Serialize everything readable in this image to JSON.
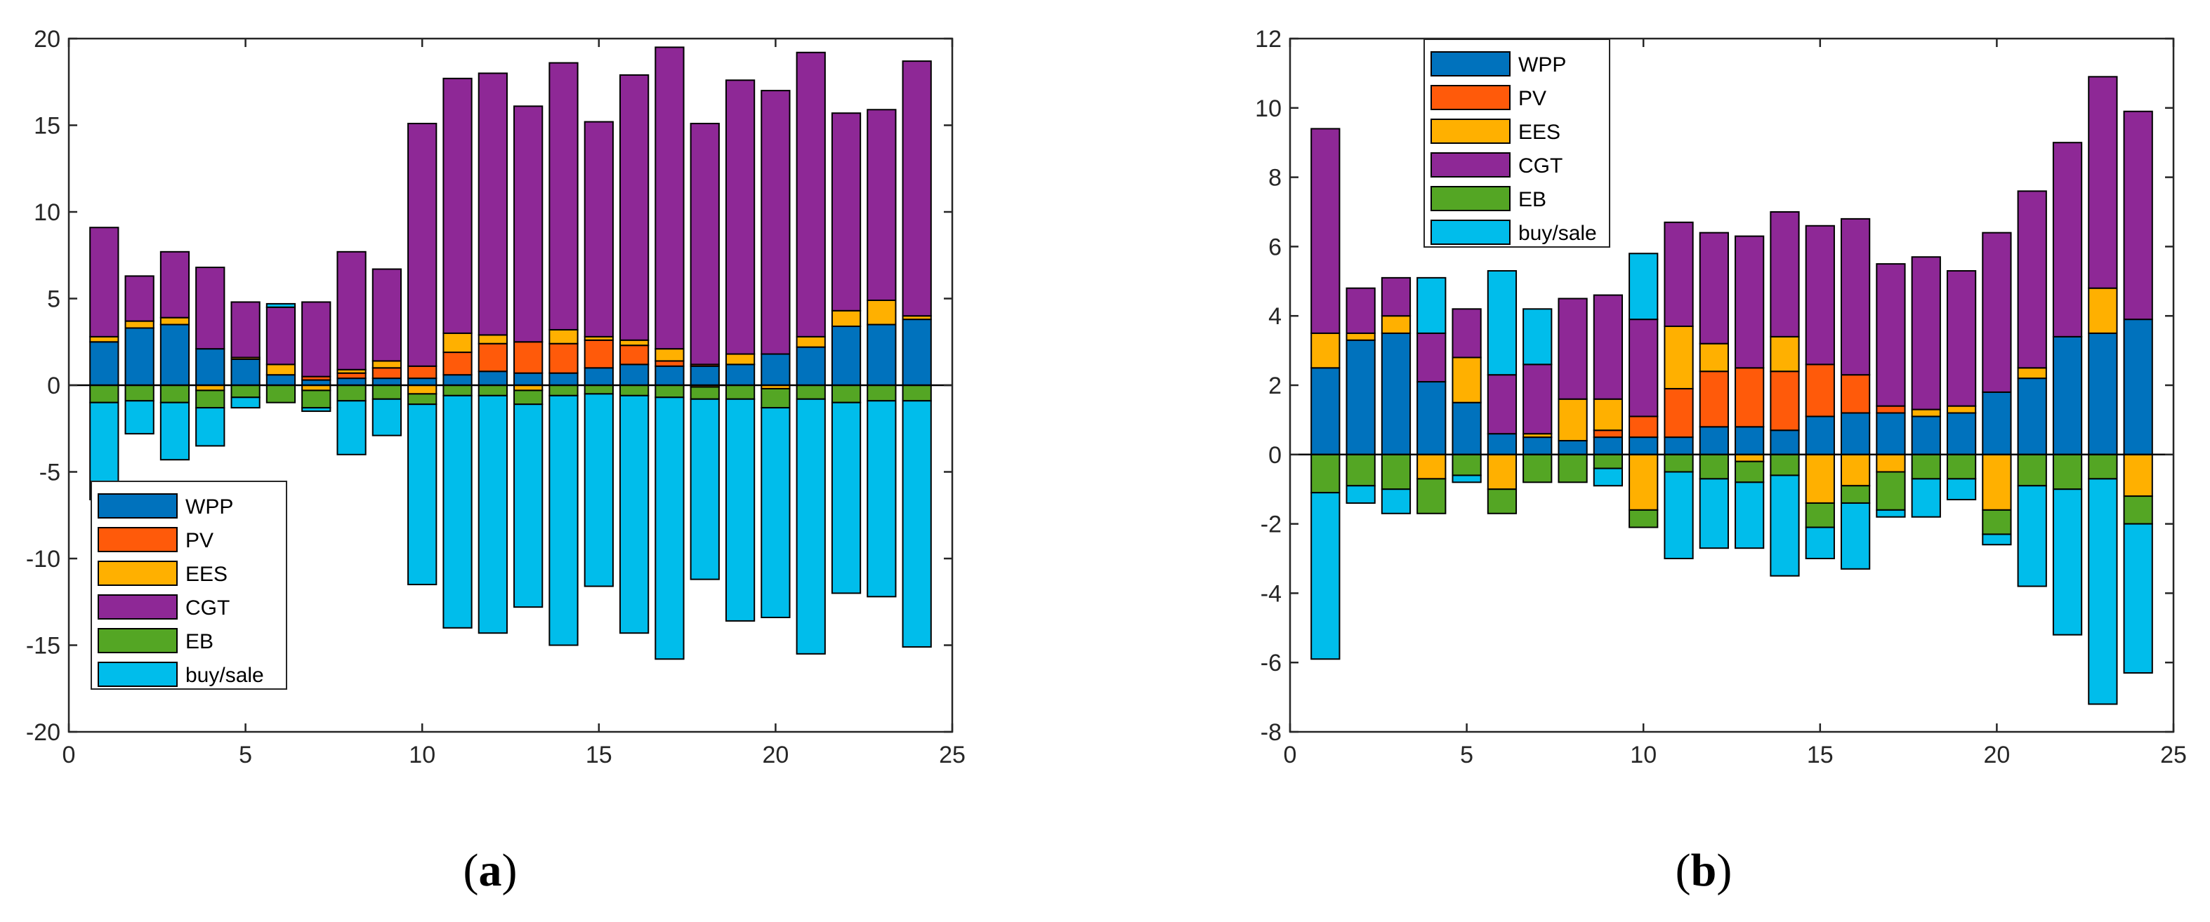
{
  "chart_data": [
    {
      "type": "bar",
      "stacking": "stacked-positive-negative",
      "panel_label": "a",
      "x": [
        1,
        2,
        3,
        4,
        5,
        6,
        7,
        8,
        9,
        10,
        11,
        12,
        13,
        14,
        15,
        16,
        17,
        18,
        19,
        20,
        21,
        22,
        23,
        24
      ],
      "xlim": [
        0,
        25
      ],
      "ylim": [
        -20,
        20
      ],
      "xticks": [
        0,
        5,
        10,
        15,
        20,
        25
      ],
      "yticks": [
        -20,
        -15,
        -10,
        -5,
        0,
        5,
        10,
        15,
        20
      ],
      "legend_position": "lower-left",
      "series": [
        {
          "name": "WPP",
          "color": "#0072BD",
          "values": [
            2.5,
            3.3,
            3.5,
            2.1,
            1.5,
            0.6,
            0.3,
            0.4,
            0.4,
            0.4,
            0.6,
            0.8,
            0.7,
            0.7,
            1.0,
            1.2,
            1.1,
            1.1,
            1.2,
            1.8,
            2.2,
            3.4,
            3.5,
            3.8
          ]
        },
        {
          "name": "PV",
          "color": "#FF5A0A",
          "values": [
            0,
            0,
            0,
            0,
            0,
            0,
            0.2,
            0.3,
            0.6,
            0.7,
            1.3,
            1.6,
            1.8,
            1.7,
            1.6,
            1.1,
            0.3,
            0.1,
            0,
            0,
            0,
            0,
            0,
            0
          ]
        },
        {
          "name": "EES",
          "color": "#FFB000",
          "values": [
            0.3,
            0.4,
            0.4,
            -0.3,
            0.1,
            0.6,
            -0.3,
            0.2,
            0.4,
            -0.5,
            1.1,
            0.5,
            -0.3,
            0.8,
            0.2,
            0.3,
            0.7,
            -0.1,
            0.6,
            -0.2,
            0.6,
            0.9,
            1.4,
            0.2
          ]
        },
        {
          "name": "CGT",
          "color": "#8E2896",
          "values": [
            6.3,
            2.6,
            3.8,
            4.7,
            3.2,
            3.3,
            4.3,
            6.8,
            5.3,
            14.0,
            14.7,
            15.1,
            13.6,
            15.4,
            12.4,
            15.3,
            17.4,
            13.9,
            15.8,
            15.2,
            16.4,
            11.4,
            11.0,
            14.7
          ]
        },
        {
          "name": "EB",
          "color": "#54A624",
          "values": [
            -1.0,
            -0.9,
            -1.0,
            -1.0,
            -0.7,
            -1.0,
            -1.0,
            -0.9,
            -0.8,
            -0.6,
            -0.6,
            -0.6,
            -0.8,
            -0.6,
            -0.5,
            -0.6,
            -0.7,
            -0.7,
            -0.8,
            -1.1,
            -0.8,
            -1.0,
            -0.9,
            -0.9
          ]
        },
        {
          "name": "buy/sale",
          "color": "#00BDEB",
          "values": [
            -5.6,
            -1.9,
            -3.3,
            -2.2,
            -0.6,
            0.2,
            -0.2,
            -3.1,
            -2.1,
            -10.4,
            -13.4,
            -13.7,
            -11.7,
            -14.4,
            -11.1,
            -13.7,
            -15.1,
            -10.4,
            -12.8,
            -12.1,
            -14.7,
            -11.0,
            -11.3,
            -14.2
          ]
        }
      ]
    },
    {
      "type": "bar",
      "stacking": "stacked-positive-negative",
      "panel_label": "b",
      "x": [
        1,
        2,
        3,
        4,
        5,
        6,
        7,
        8,
        9,
        10,
        11,
        12,
        13,
        14,
        15,
        16,
        17,
        18,
        19,
        20,
        21,
        22,
        23,
        24
      ],
      "xlim": [
        0,
        25
      ],
      "ylim": [
        -8,
        12
      ],
      "xticks": [
        0,
        5,
        10,
        15,
        20,
        25
      ],
      "yticks": [
        -8,
        -6,
        -4,
        -2,
        0,
        2,
        4,
        6,
        8,
        10,
        12
      ],
      "legend_position": "top-left",
      "series": [
        {
          "name": "WPP",
          "color": "#0072BD",
          "values": [
            2.5,
            3.3,
            3.5,
            2.1,
            1.5,
            0.6,
            0.5,
            0.4,
            0.5,
            0.5,
            0.5,
            0.8,
            0.8,
            0.7,
            1.1,
            1.2,
            1.2,
            1.1,
            1.2,
            1.8,
            2.2,
            3.4,
            3.5,
            3.9
          ]
        },
        {
          "name": "PV",
          "color": "#FF5A0A",
          "values": [
            0,
            0,
            0,
            0,
            0,
            0,
            0,
            0,
            0.2,
            0.6,
            1.4,
            1.6,
            1.7,
            1.7,
            1.5,
            1.1,
            0.2,
            0,
            0,
            0,
            0,
            0,
            0,
            0
          ]
        },
        {
          "name": "EES",
          "color": "#FFB000",
          "values": [
            1.0,
            0.2,
            0.5,
            -0.7,
            1.3,
            -1.0,
            0.1,
            1.2,
            0.9,
            -1.6,
            1.8,
            0.8,
            -0.2,
            1.0,
            -1.4,
            -0.9,
            -0.5,
            0.2,
            0.2,
            -1.6,
            0.3,
            0,
            1.3,
            -1.2
          ]
        },
        {
          "name": "CGT",
          "color": "#8E2896",
          "values": [
            5.9,
            1.3,
            1.1,
            1.4,
            1.4,
            1.7,
            2.0,
            2.9,
            3.0,
            2.8,
            3.0,
            3.2,
            3.8,
            3.6,
            4.0,
            4.5,
            4.1,
            4.4,
            3.9,
            4.6,
            5.1,
            5.6,
            6.1,
            6.0
          ]
        },
        {
          "name": "EB",
          "color": "#54A624",
          "values": [
            -1.1,
            -0.9,
            -1.0,
            -1.0,
            -0.6,
            -0.7,
            -0.8,
            -0.8,
            -0.4,
            -0.5,
            -0.5,
            -0.7,
            -0.6,
            -0.6,
            -0.7,
            -0.5,
            -1.1,
            -0.7,
            -0.7,
            -0.7,
            -0.9,
            -1.0,
            -0.7,
            -0.8
          ]
        },
        {
          "name": "buy/sale",
          "color": "#00BDEB",
          "values": [
            -4.8,
            -0.5,
            -0.7,
            1.6,
            -0.2,
            3.0,
            1.6,
            0,
            -0.5,
            1.9,
            -2.5,
            -2.0,
            -1.9,
            -2.9,
            -0.9,
            -1.9,
            -0.2,
            -1.1,
            -0.6,
            -0.3,
            -2.9,
            -4.2,
            -6.5,
            -4.3
          ]
        }
      ]
    }
  ]
}
